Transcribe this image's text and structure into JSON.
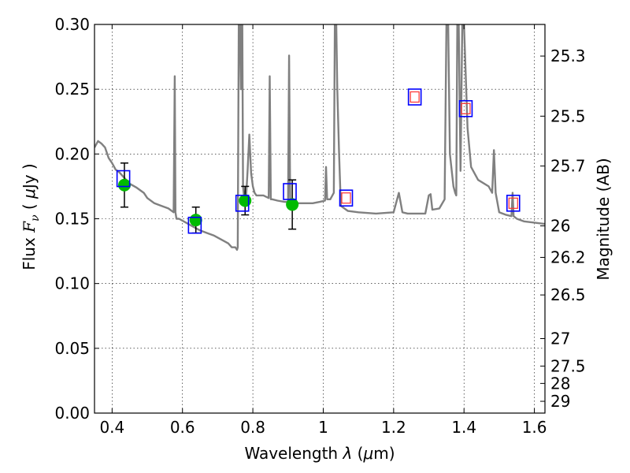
{
  "chart_data": {
    "type": "line",
    "xlabel": "Wavelength λ (μm)",
    "ylabel": "Flux F_ν ( μJy )",
    "y2label": "Magnitude (AB)",
    "xlim": [
      0.35,
      1.63
    ],
    "ylim": [
      0.0,
      0.3
    ],
    "grid": true,
    "x_ticks": [
      0.4,
      0.6,
      0.8,
      1.0,
      1.2,
      1.4,
      1.6
    ],
    "x_tick_labels": [
      "0.4",
      "0.6",
      "0.8",
      "1",
      "1.2",
      "1.4",
      "1.6"
    ],
    "y_ticks": [
      0.0,
      0.05,
      0.1,
      0.15,
      0.2,
      0.25,
      0.3
    ],
    "y_tick_labels": [
      "0.00",
      "0.05",
      "0.10",
      "0.15",
      "0.20",
      "0.25",
      "0.30"
    ],
    "y2_ticks": [
      {
        "label": "25.3",
        "flux": 0.2756
      },
      {
        "label": "25.5",
        "flux": 0.2292
      },
      {
        "label": "25.7",
        "flux": 0.1907
      },
      {
        "label": "26",
        "flux": 0.1445
      },
      {
        "label": "26.2",
        "flux": 0.1202
      },
      {
        "label": "26.5",
        "flux": 0.0912
      },
      {
        "label": "27",
        "flux": 0.0575
      },
      {
        "label": "27.5",
        "flux": 0.0363
      },
      {
        "label": "28",
        "flux": 0.0229
      },
      {
        "label": "29",
        "flux": 0.0091
      }
    ],
    "series": [
      {
        "kind": "model-spectrum",
        "color": "#808080",
        "x": [
          0.35,
          0.36,
          0.37,
          0.38,
          0.39,
          0.4,
          0.41,
          0.42,
          0.43,
          0.45,
          0.47,
          0.49,
          0.5,
          0.52,
          0.54,
          0.56,
          0.575,
          0.578,
          0.58,
          0.583,
          0.59,
          0.61,
          0.63,
          0.65,
          0.67,
          0.69,
          0.71,
          0.73,
          0.74,
          0.75,
          0.755,
          0.757,
          0.76,
          0.763,
          0.766,
          0.768,
          0.77,
          0.772,
          0.775,
          0.778,
          0.78,
          0.785,
          0.79,
          0.795,
          0.8,
          0.805,
          0.81,
          0.83,
          0.845,
          0.848,
          0.851,
          0.855,
          0.87,
          0.89,
          0.9,
          0.903,
          0.906,
          0.91,
          0.93,
          0.95,
          0.97,
          0.99,
          1.005,
          1.008,
          1.011,
          1.02,
          1.03,
          1.033,
          1.037,
          1.04,
          1.045,
          1.05,
          1.07,
          1.1,
          1.15,
          1.2,
          1.215,
          1.225,
          1.24,
          1.27,
          1.29,
          1.3,
          1.305,
          1.31,
          1.33,
          1.345,
          1.35,
          1.355,
          1.36,
          1.37,
          1.375,
          1.378,
          1.381,
          1.385,
          1.39,
          1.395,
          1.4,
          1.41,
          1.42,
          1.44,
          1.47,
          1.48,
          1.485,
          1.49,
          1.5,
          1.52,
          1.535,
          1.538,
          1.541,
          1.55,
          1.57,
          1.6,
          1.63
        ],
        "y": [
          0.205,
          0.21,
          0.208,
          0.205,
          0.197,
          0.193,
          0.188,
          0.186,
          0.183,
          0.177,
          0.174,
          0.17,
          0.166,
          0.162,
          0.16,
          0.158,
          0.155,
          0.26,
          0.155,
          0.15,
          0.15,
          0.147,
          0.144,
          0.141,
          0.139,
          0.137,
          0.134,
          0.131,
          0.128,
          0.128,
          0.126,
          0.128,
          0.3,
          0.3,
          0.25,
          0.3,
          0.3,
          0.175,
          0.167,
          0.168,
          0.164,
          0.187,
          0.215,
          0.185,
          0.175,
          0.17,
          0.168,
          0.168,
          0.166,
          0.26,
          0.165,
          0.165,
          0.164,
          0.163,
          0.163,
          0.276,
          0.163,
          0.162,
          0.162,
          0.162,
          0.162,
          0.163,
          0.164,
          0.19,
          0.165,
          0.165,
          0.17,
          0.3,
          0.3,
          0.25,
          0.2,
          0.16,
          0.156,
          0.155,
          0.154,
          0.155,
          0.17,
          0.155,
          0.154,
          0.154,
          0.154,
          0.168,
          0.169,
          0.157,
          0.158,
          0.165,
          0.3,
          0.3,
          0.2,
          0.175,
          0.17,
          0.168,
          0.3,
          0.3,
          0.187,
          0.3,
          0.3,
          0.22,
          0.19,
          0.18,
          0.175,
          0.17,
          0.203,
          0.17,
          0.155,
          0.153,
          0.152,
          0.17,
          0.152,
          0.15,
          0.148,
          0.147,
          0.146
        ]
      },
      {
        "kind": "observed",
        "color": "#00bb00",
        "x": [
          0.435,
          0.638,
          0.778,
          0.912
        ],
        "y": [
          0.176,
          0.149,
          0.164,
          0.161
        ],
        "yerr": [
          0.017,
          0.01,
          0.011,
          0.019
        ]
      },
      {
        "kind": "model-photometry",
        "color": "#0000ff",
        "x": [
          0.432,
          0.635,
          0.77,
          0.905,
          1.065,
          1.26,
          1.405,
          1.54
        ],
        "y": [
          0.181,
          0.145,
          0.162,
          0.171,
          0.166,
          0.244,
          0.235,
          0.162
        ]
      },
      {
        "kind": "upper-limit-inner",
        "color": "#ff3030",
        "x": [
          1.065,
          1.26,
          1.405,
          1.54
        ],
        "y": [
          0.166,
          0.244,
          0.235,
          0.162
        ]
      }
    ]
  }
}
